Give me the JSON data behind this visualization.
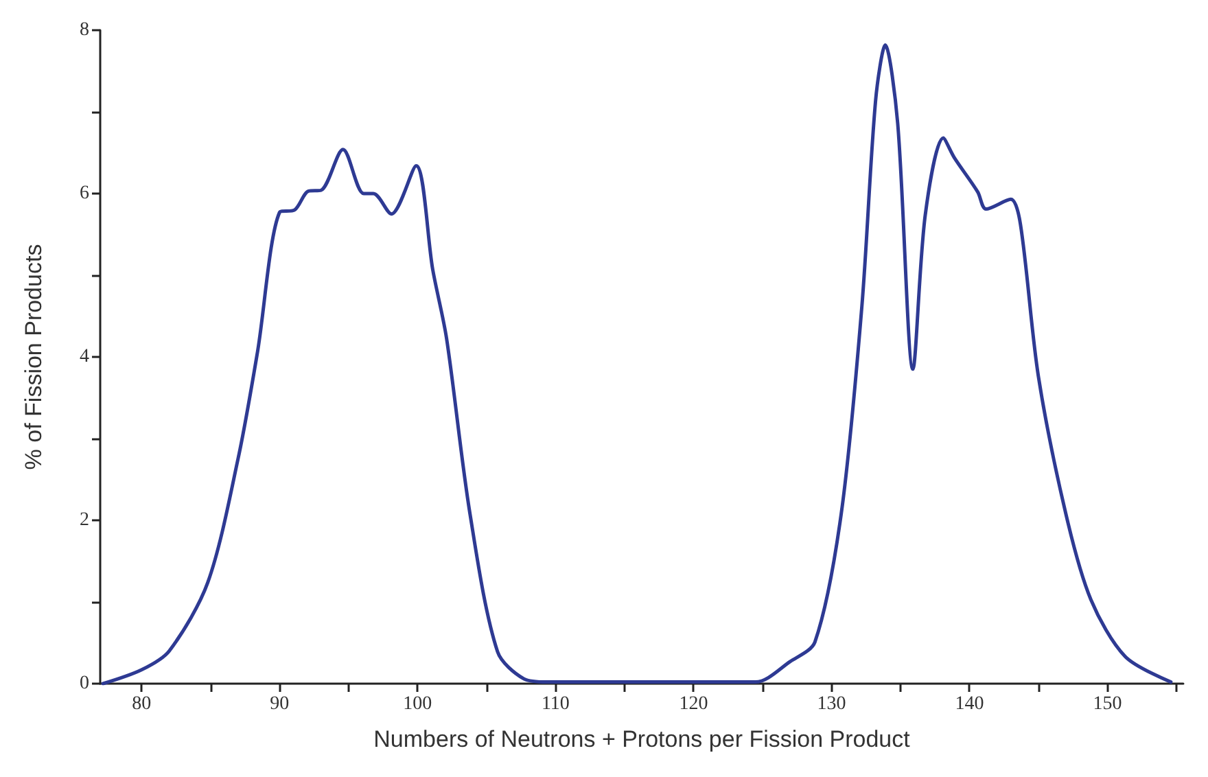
{
  "chart_data": {
    "type": "line",
    "xlabel": "Numbers of Neutrons + Protons per Fission Product",
    "ylabel": "% of Fission Products",
    "series": [
      {
        "color": "#2e3a93",
        "x": [
          77.2,
          80,
          82,
          84.8,
          87,
          88.4,
          90,
          91.1,
          92.1,
          93,
          94.6,
          96.1,
          96.8,
          98.1,
          99.9,
          101.1,
          102.1,
          103.8,
          105.8,
          107.7,
          109.4,
          115,
          120,
          124.5,
          127,
          128.8,
          130.7,
          132.2,
          133.2,
          133.9,
          134.8,
          135.9,
          136.8,
          138.1,
          138.9,
          140.6,
          141.2,
          143,
          143.7,
          145,
          147,
          148.8,
          151.3,
          154.6
        ],
        "values": [
          0,
          0.17,
          0.4,
          1.24,
          2.76,
          4.06,
          5.77,
          5.8,
          6.03,
          6.04,
          6.54,
          6.0,
          6.0,
          5.75,
          6.34,
          5.07,
          4.23,
          2.08,
          0.39,
          0.06,
          0.02,
          0.02,
          0.02,
          0.02,
          0.27,
          0.51,
          2.07,
          4.61,
          7.14,
          7.82,
          6.86,
          3.85,
          5.74,
          6.68,
          6.44,
          6.02,
          5.81,
          5.93,
          5.62,
          3.76,
          2.07,
          1.03,
          0.33,
          0.02
        ]
      }
    ],
    "xlim": [
      77,
      155.5
    ],
    "xticks": [
      80,
      {
        "value": 85,
        "label": null
      },
      90,
      {
        "value": 95,
        "label": null
      },
      100,
      {
        "value": 105,
        "label": null
      },
      110,
      {
        "value": 115,
        "label": null
      },
      120,
      {
        "value": 125,
        "label": null
      },
      130,
      {
        "value": 135,
        "label": null
      },
      140,
      {
        "value": 145,
        "label": null
      },
      150,
      {
        "value": 155,
        "label": null
      }
    ],
    "ylim": [
      0,
      8
    ],
    "yticks": [
      0,
      {
        "value": 1,
        "label": null
      },
      2,
      {
        "value": 3,
        "label": null
      },
      4,
      {
        "value": 5,
        "label": null
      },
      6,
      {
        "value": 7,
        "label": null
      },
      8
    ],
    "grid": false,
    "marker": "none",
    "line_style": "solid"
  }
}
